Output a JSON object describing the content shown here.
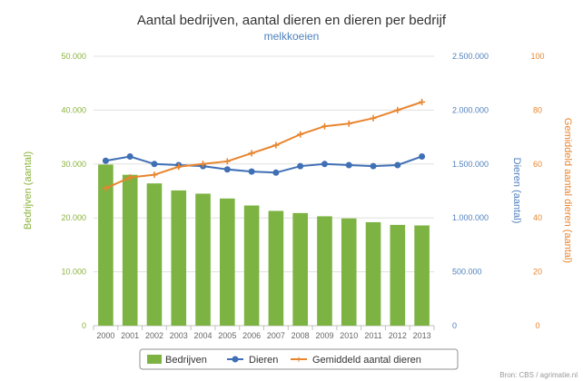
{
  "chart_data": {
    "type": "bar",
    "title": "Aantal bedrijven, aantal dieren en dieren per bedrijf",
    "subtitle": "melkkoeien",
    "categories": [
      "2000",
      "2001",
      "2002",
      "2003",
      "2004",
      "2005",
      "2006",
      "2007",
      "2008",
      "2009",
      "2010",
      "2011",
      "2012",
      "2013"
    ],
    "series": [
      {
        "name": "Bedrijven",
        "chart": "bar",
        "axis": "left",
        "color": "#7cb342",
        "values": [
          29900,
          28000,
          26400,
          25100,
          24500,
          23600,
          22300,
          21300,
          20900,
          20300,
          19900,
          19200,
          18700,
          18600
        ]
      },
      {
        "name": "Dieren",
        "chart": "line",
        "axis": "right",
        "color": "#3f6fb5",
        "marker": "circle",
        "values": [
          1530000,
          1570000,
          1500000,
          1490000,
          1480000,
          1450000,
          1430000,
          1420000,
          1480000,
          1500000,
          1490000,
          1480000,
          1490000,
          1570000
        ]
      },
      {
        "name": "Gemiddeld aantal dieren",
        "chart": "line",
        "axis": "right2",
        "color": "#e8852e",
        "marker": "plus",
        "values": [
          51,
          55,
          56,
          59,
          60,
          61,
          64,
          67,
          71,
          74,
          75,
          77,
          80,
          83
        ]
      }
    ],
    "axes": {
      "left": {
        "title": "Bedrijven (aantal)",
        "color": "#8ab33b",
        "min": 0,
        "max": 50000,
        "ticks": [
          "0",
          "10.000",
          "20.000",
          "30.000",
          "40.000",
          "50.000"
        ]
      },
      "right": {
        "title": "Dieren (aantal)",
        "color": "#4f81bd",
        "min": 0,
        "max": 2500000,
        "ticks": [
          "0",
          "500.000",
          "1.000.000",
          "1.500.000",
          "2.000.000",
          "2.500.000"
        ]
      },
      "right2": {
        "title": "Gemiddeld aantal dieren (aantal)",
        "color": "#e8852e",
        "min": 0,
        "max": 100,
        "ticks": [
          "0",
          "20",
          "40",
          "60",
          "80",
          "100"
        ]
      }
    },
    "grid": true,
    "legend_position": "bottom",
    "credits": "Bron: CBS / agrimatie.nl"
  }
}
